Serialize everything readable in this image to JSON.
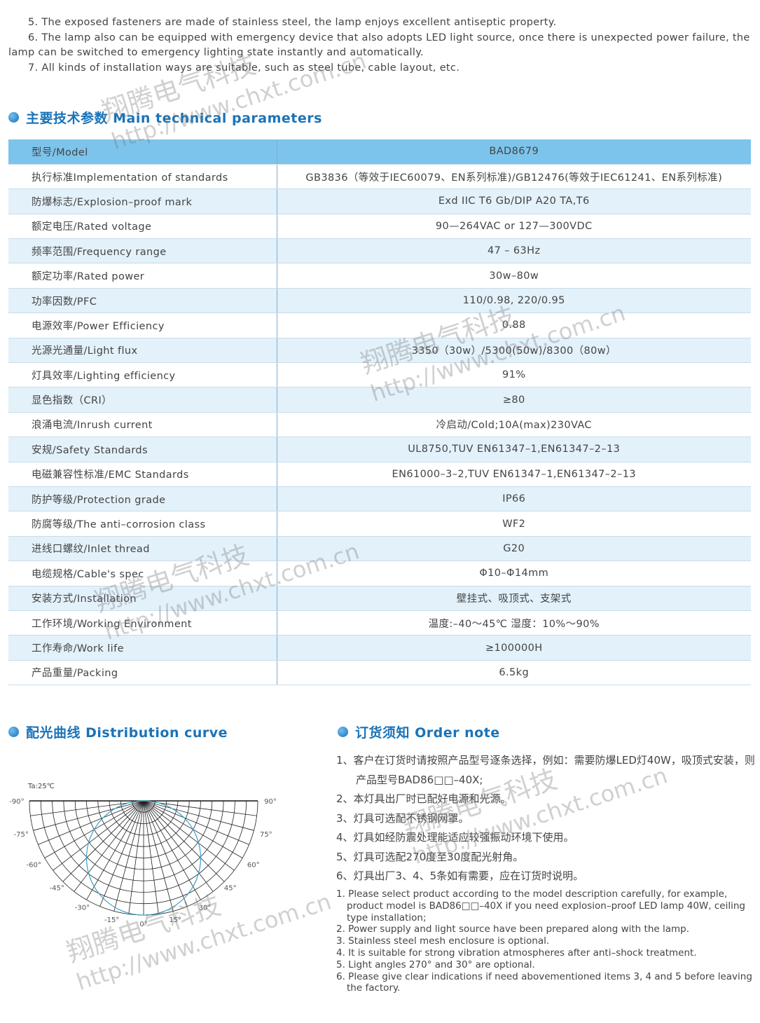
{
  "intro": [
    "5. The exposed fasteners are made of stainless steel, the lamp enjoys excellent antiseptic property.",
    "6. The lamp also can be equipped with emergency device that also adopts LED light source, once there is unexpected power failure, the lamp can be switched to emergency lighting state instantly and automatically.",
    "7. All kinds of installation ways are suitable, such as steel tube, cable layout, etc."
  ],
  "params_title": "主要技术参数 Main technical parameters",
  "params": [
    [
      "型号/Model",
      "BAD8679"
    ],
    [
      "执行标准Implementation of standards",
      "GB3836（等效于IEC60079、EN系列标准)/GB12476(等效于IEC61241、EN系列标准)"
    ],
    [
      "防爆标志/Explosion–proof mark",
      "Exd IIC T6 Gb/DIP A20 TA,T6"
    ],
    [
      "额定电压/Rated voltage",
      "90—264VAC  or  127—300VDC"
    ],
    [
      "频率范围/Frequency range",
      "47 – 63Hz"
    ],
    [
      "额定功率/Rated power",
      "30w–80w"
    ],
    [
      "功率因数/PFC",
      "110/0.98, 220/0.95"
    ],
    [
      "电源效率/Power Efficiency",
      "0.88"
    ],
    [
      "光源光通量/Light flux",
      "3350（30w）/5300(50w)/8300（80w）"
    ],
    [
      "灯具效率/Lighting efficiency",
      "91%"
    ],
    [
      "显色指数（CRI）",
      "≥80"
    ],
    [
      "浪涌电流/Inrush current",
      "冷启动/Cold;10A(max)230VAC"
    ],
    [
      "安规/Safety Standards",
      "UL8750,TUV EN61347–1,EN61347–2–13"
    ],
    [
      "电磁兼容性标准/EMC Standards",
      "EN61000–3–2,TUV EN61347–1,EN61347–2–13"
    ],
    [
      "防护等级/Protection grade",
      "IP66"
    ],
    [
      "防腐等级/The anti–corrosion class",
      "WF2"
    ],
    [
      "进线口螺纹/Inlet thread",
      "G20"
    ],
    [
      "电缆规格/Cable's spec",
      "Φ10–Φ14mm"
    ],
    [
      "安装方式/Installation",
      "壁挂式、吸顶式、支架式"
    ],
    [
      "工作环境/Working Environment",
      "温度:–40～45℃ 湿度：10%～90%"
    ],
    [
      "工作寿命/Work life",
      "≥100000H"
    ],
    [
      "产品重量/Packing",
      "6.5kg"
    ]
  ],
  "dist_title": "配光曲线 Distribution curve",
  "chart_data": {
    "type": "polar",
    "annotation": "Ta:25℃",
    "angle_labels": [
      "-90°",
      "-75°",
      "-60°",
      "-45°",
      "-30°",
      "-15°",
      "0°",
      "15°",
      "30°",
      "45°",
      "60°",
      "75°",
      "90°"
    ],
    "curve": "circle",
    "curve_color": "#3aa0c8"
  },
  "order_title": "订货须知 Order note",
  "order_cn": [
    "1、客户在订货时请按照产品型号逐条选择，例如：需要防爆LED灯40W，吸顶式安装，则产品型号BAD86□□–40X;",
    "2、本灯具出厂时已配好电源和光源。",
    "3、灯具可选配不锈钢网罩。",
    "4、灯具如经防震处理能适应较强振动环境下使用。",
    "5、灯具可选配270度至30度配光射角。",
    "6、灯具出厂3、4、5条如有需要，应在订货时说明。"
  ],
  "order_en": [
    "1. Please select product according to the model description carefully, for example, product model is BAD86□□–40X if you need explosion–proof LED lamp 40W, ceiling type installation;",
    "2. Power supply and light source have been prepared along with the lamp.",
    "3. Stainless steel mesh enclosure is optional.",
    "4. It is suitable for strong vibration atmospheres after anti–shock treatment.",
    "5. Light angles 270°  and 30°  are optional.",
    "6. Please give clear indications if need abovementioned items 3, 4 and 5 before leaving the factory."
  ],
  "watermark": {
    "name": "翔腾电气科技",
    "url": "http://www.chxt.com.cn"
  },
  "colors": {
    "accent": "#1a73b8",
    "header_row": "#7cc4ec",
    "alt_row": "#e3f1fa"
  }
}
